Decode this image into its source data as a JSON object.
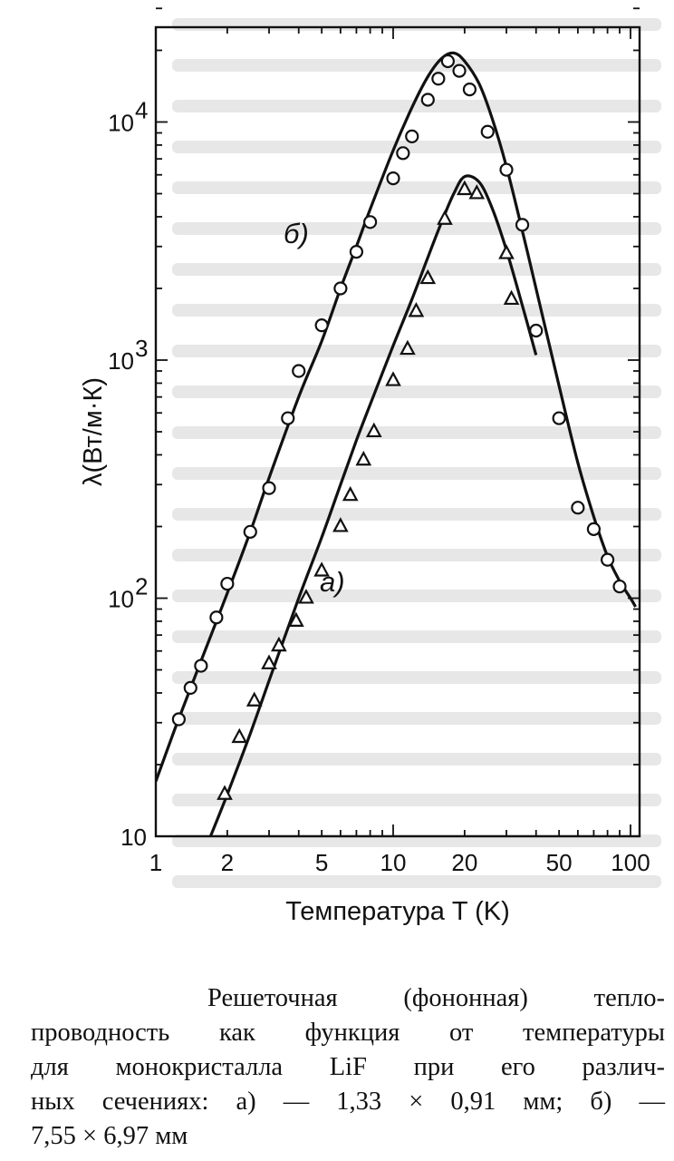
{
  "chart_data": {
    "type": "line",
    "title": "",
    "xlabel": "Температура T (K)",
    "ylabel": "λ(Вт/м·К)",
    "xscale": "log",
    "yscale": "log",
    "xlim": [
      1,
      105
    ],
    "ylim": [
      10,
      35000
    ],
    "xticks": [
      1,
      2,
      5,
      10,
      20,
      50,
      100
    ],
    "xtick_labels": [
      "1",
      "2",
      "5",
      "10",
      "20",
      "50",
      "100"
    ],
    "yticks": [
      10,
      100,
      1000,
      10000
    ],
    "ytick_labels": [
      "10",
      "10",
      "10",
      "10"
    ],
    "ytick_exponents": [
      "",
      "2",
      "3",
      "4"
    ],
    "grid": false,
    "series": [
      {
        "name": "б)",
        "marker": "circle",
        "fit_curve": {
          "x": [
            1.0,
            1.2,
            1.5,
            2.0,
            2.5,
            3.0,
            4.0,
            5.0,
            6.0,
            7.0,
            8.0,
            10.0,
            12.0,
            14.0,
            16.0,
            18.0,
            20.0,
            23.0,
            26.0,
            30.0,
            35.0,
            40.0,
            50.0,
            60.0,
            70.0,
            80.0,
            90.0,
            100.0,
            105.0
          ],
          "y": [
            17,
            28,
            50,
            105,
            190,
            320,
            700,
            1200,
            2000,
            3000,
            4300,
            7600,
            11500,
            15500,
            18500,
            19500,
            18000,
            14500,
            10500,
            6500,
            3500,
            2000,
            780,
            370,
            220,
            150,
            118,
            100,
            92
          ]
        },
        "points": {
          "x": [
            1.25,
            1.4,
            1.55,
            1.8,
            2.0,
            2.5,
            3.0,
            3.6,
            4.0,
            5.0,
            6.0,
            7.0,
            8.0,
            10.0,
            11.0,
            12.0,
            14.0,
            15.5,
            17.0,
            19.0,
            21.0,
            25.0,
            30.0,
            35.0,
            40.0,
            50.0,
            60.0,
            70.0,
            80.0,
            90.0
          ],
          "y": [
            31,
            42,
            52,
            83,
            115,
            190,
            290,
            570,
            900,
            1400,
            2000,
            2850,
            3800,
            5800,
            7400,
            8700,
            12400,
            15200,
            18000,
            16400,
            13700,
            9100,
            6300,
            3700,
            1330,
            570,
            240,
            195,
            145,
            112
          ]
        }
      },
      {
        "name": "а)",
        "marker": "triangle",
        "fit_curve": {
          "x": [
            1.7,
            2.0,
            2.5,
            3.0,
            4.0,
            5.0,
            6.0,
            7.0,
            8.0,
            10.0,
            12.0,
            14.0,
            16.0,
            18.0,
            20.0,
            23.0,
            26.0,
            30.0,
            35.0,
            40.0
          ],
          "y": [
            10,
            15,
            27,
            45,
            100,
            180,
            300,
            460,
            650,
            1150,
            1800,
            2700,
            3800,
            5000,
            5900,
            5600,
            4400,
            2900,
            1700,
            1050
          ]
        },
        "points": {
          "x": [
            1.95,
            2.25,
            2.6,
            3.0,
            3.3,
            3.9,
            4.3,
            5.0,
            6.0,
            6.6,
            7.5,
            8.3,
            10.0,
            11.5,
            12.5,
            14.0,
            16.5,
            20.0,
            22.5,
            30.0,
            31.5
          ],
          "y": [
            15,
            26,
            37,
            53,
            63,
            80,
            100,
            130,
            200,
            270,
            380,
            500,
            820,
            1110,
            1600,
            2200,
            3900,
            5200,
            5000,
            2800,
            1800
          ]
        }
      }
    ],
    "series_labels": [
      "б)",
      "а)"
    ]
  },
  "caption": {
    "lines": [
      "Решеточная (фононная) тепло-",
      "проводность как функция от температуры",
      "для монокристалла LiF при его различ-",
      "ных сечениях: а) — 1,33 × 0,91 мм; б) —",
      "7,55 × 6,97 мм"
    ]
  },
  "colors": {
    "ink": "#111111",
    "background": "#ffffff"
  }
}
